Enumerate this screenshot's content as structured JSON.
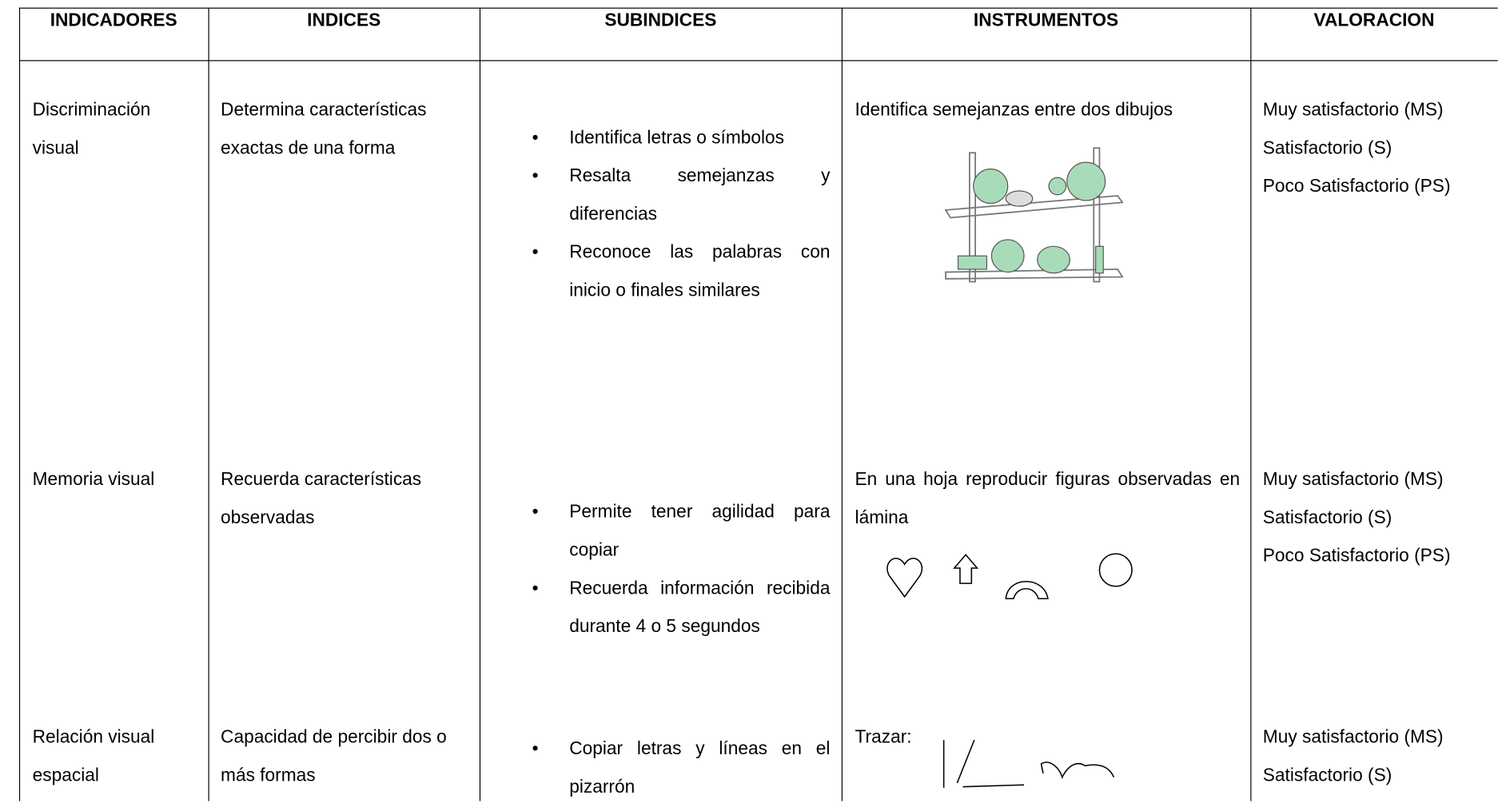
{
  "table": {
    "headers": [
      "INDICADORES",
      "INDICES",
      "SUBINDICES",
      "INSTRUMENTOS",
      "VALORACION"
    ],
    "rows": [
      {
        "indicador": "Discriminación visual",
        "indice": "Determina características exactas de una forma",
        "subindices": [
          "Identifica letras o símbolos",
          "Resalta semejanzas y diferencias",
          "Reconoce las palabras con inicio o finales similares"
        ],
        "instrumento": "Identifica semejanzas entre dos dibujos",
        "valoracion": [
          "Muy satisfactorio (MS)",
          "Satisfactorio (S)",
          "Poco Satisfactorio (PS)"
        ]
      },
      {
        "indicador": "Memoria visual",
        "indice": "Recuerda características observadas",
        "subindices": [
          "Permite tener agilidad para copiar",
          "Recuerda información recibida durante 4 o 5 segundos"
        ],
        "instrumento": "En una hoja reproducir figuras observadas en lámina",
        "valoracion": [
          "Muy satisfactorio (MS)",
          "Satisfactorio (S)",
          "Poco Satisfactorio (PS)"
        ]
      },
      {
        "indicador": "Relación visual espacial",
        "indice": "Capacidad de percibir dos o más formas",
        "subindices": [
          "Copiar letras y líneas en el pizarrón"
        ],
        "instrumento": "Trazar:",
        "valoracion": [
          "Muy satisfactorio (MS)",
          "Satisfactorio (S)"
        ]
      }
    ]
  }
}
